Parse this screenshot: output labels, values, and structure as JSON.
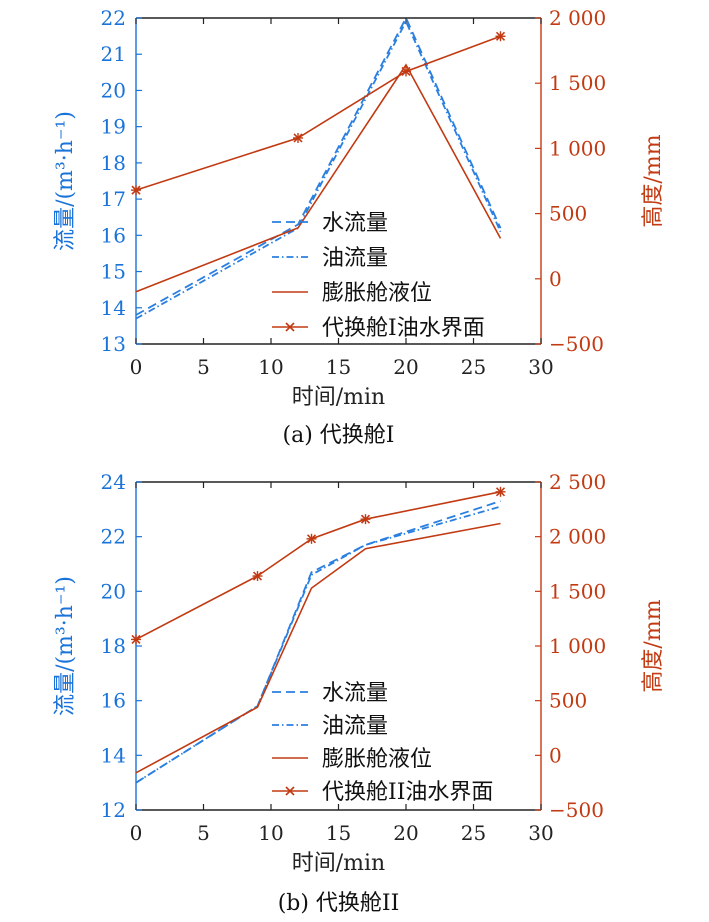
{
  "figure": {
    "colors": {
      "water": "#2a7fe0",
      "oil": "#2a7fe0",
      "level": "#c23a12",
      "interface": "#c23a12",
      "axis_left": "#1a73d9",
      "axis_right": "#c23a12"
    }
  },
  "chart_data": [
    {
      "type": "line",
      "caption": "(a) 代换舱I",
      "xlabel": "时间/min",
      "ylabel_left": "流量/(m³·h⁻¹)",
      "ylabel_right": "高度/mm",
      "xlim": [
        0,
        30
      ],
      "xticks": [
        0,
        5,
        10,
        15,
        20,
        25,
        30
      ],
      "ylim_left": [
        13,
        22
      ],
      "yticks_left": [
        13,
        14,
        15,
        16,
        17,
        18,
        19,
        20,
        21,
        22
      ],
      "ylim_right": [
        -500,
        2000
      ],
      "yticks_right": [
        -500,
        0,
        500,
        1000,
        1500,
        2000
      ],
      "yticklabels_right": [
        "−500",
        "0",
        "500",
        "1 000",
        "1 500",
        "2 000"
      ],
      "legend_position": "lower-center",
      "series": [
        {
          "name": "水流量",
          "axis": "left",
          "style": "dashed",
          "x": [
            0,
            12,
            20,
            27
          ],
          "y": [
            13.8,
            16.3,
            22.0,
            16.2
          ]
        },
        {
          "name": "油流量",
          "axis": "left",
          "style": "dashdot",
          "x": [
            0,
            12,
            20,
            27
          ],
          "y": [
            13.7,
            16.2,
            21.9,
            16.1
          ]
        },
        {
          "name": "膨胀舱液位",
          "axis": "right",
          "style": "solid",
          "x": [
            0,
            12,
            20,
            27
          ],
          "y": [
            -100,
            390,
            1640,
            310
          ]
        },
        {
          "name": "代换舱I油水界面",
          "axis": "right",
          "style": "solid-marker",
          "x": [
            0,
            12,
            20,
            27
          ],
          "y": [
            680,
            1080,
            1590,
            1860
          ]
        }
      ]
    },
    {
      "type": "line",
      "caption": "(b) 代换舱II",
      "xlabel": "时间/min",
      "ylabel_left": "流量/(m³·h⁻¹)",
      "ylabel_right": "高度/mm",
      "xlim": [
        0,
        30
      ],
      "xticks": [
        0,
        5,
        10,
        15,
        20,
        25,
        30
      ],
      "ylim_left": [
        12,
        24
      ],
      "yticks_left": [
        12,
        14,
        16,
        18,
        20,
        22,
        24
      ],
      "ylim_right": [
        -500,
        2500
      ],
      "yticks_right": [
        -500,
        0,
        500,
        1000,
        1500,
        2000,
        2500
      ],
      "yticklabels_right": [
        "−500",
        "0",
        "500",
        "1 000",
        "1 500",
        "2 000",
        "2 500"
      ],
      "legend_position": "lower-center",
      "series": [
        {
          "name": "水流量",
          "axis": "left",
          "style": "dashed",
          "x": [
            0,
            9,
            13,
            17,
            27
          ],
          "y": [
            13.0,
            15.8,
            20.7,
            21.7,
            23.3
          ]
        },
        {
          "name": "油流量",
          "axis": "left",
          "style": "dashdot",
          "x": [
            0,
            9,
            13,
            17,
            27
          ],
          "y": [
            13.0,
            15.8,
            20.6,
            21.7,
            23.1
          ]
        },
        {
          "name": "膨胀舱液位",
          "axis": "right",
          "style": "solid",
          "x": [
            0,
            9,
            13,
            17,
            27
          ],
          "y": [
            -160,
            440,
            1530,
            1890,
            2120
          ]
        },
        {
          "name": "代换舱II油水界面",
          "axis": "right",
          "style": "solid-marker",
          "x": [
            0,
            9,
            13,
            17,
            27
          ],
          "y": [
            1060,
            1640,
            1980,
            2160,
            2410
          ]
        }
      ]
    }
  ]
}
